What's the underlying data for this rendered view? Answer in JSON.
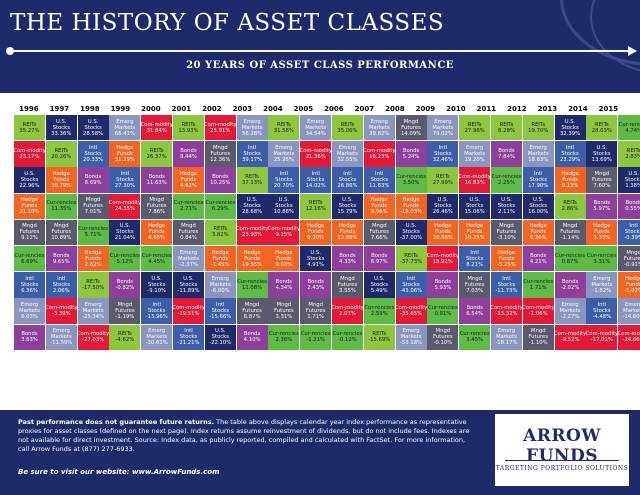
{
  "title": "THE HISTORY OF ASSET CLASSES",
  "subtitle": "20 YEARS OF ASSET CLASS PERFORMANCE",
  "colors": {
    "navy": "#1e2b6b",
    "REITs": "#8dc63f",
    "U.S. Stocks": "#1f2a6b",
    "Intl Stocks": "#3c5ea8",
    "Emerg Markets": "#8a96c0",
    "Com-modity": "#e31937",
    "Hedge Funds": "#f26522",
    "Mngd Futures": "#5a5a6e",
    "Bonds": "#8e3f9c",
    "Cur-rencies": "#5dbb46"
  },
  "years": [
    "1996",
    "1997",
    "1998",
    "1999",
    "2000",
    "2001",
    "2002",
    "2003",
    "2004",
    "2005",
    "2006",
    "2007",
    "2008",
    "2009",
    "2010",
    "2011",
    "2012",
    "2013",
    "2014",
    "2015"
  ],
  "columns": [
    [
      [
        "REITs",
        "35.27%"
      ],
      [
        "Com-modity",
        "23.17%"
      ],
      [
        "U.S. Stocks",
        "22.96%"
      ],
      [
        "Hedge Funds",
        "21.10%"
      ],
      [
        "Mngd Futures",
        "9.12%"
      ],
      [
        "Cur-rencies",
        "6.69%"
      ],
      [
        "Intl Stocks",
        "6.36%"
      ],
      [
        "Emerg Markets",
        "6.03%"
      ],
      [
        "Bonds",
        "3.63%"
      ]
    ],
    [
      [
        "U.S. Stocks",
        "33.36%"
      ],
      [
        "REITs",
        "20.26%"
      ],
      [
        "Hedge Funds",
        "16.79%"
      ],
      [
        "Cur-rencies",
        "11.35%"
      ],
      [
        "Mngd Futures",
        "10.89%"
      ],
      [
        "Bonds",
        "9.65%"
      ],
      [
        "Intl Stocks",
        "2.06%"
      ],
      [
        "Com-modity",
        "-3.39%"
      ],
      [
        "Emerg Markets",
        "-11.59%"
      ]
    ],
    [
      [
        "U.S. Stocks",
        "28.58%"
      ],
      [
        "Intl Stocks",
        "20.33%"
      ],
      [
        "Bonds",
        "8.69%"
      ],
      [
        "Mngd Futures",
        "7.01%"
      ],
      [
        "Cur-rencies",
        "5.71%"
      ],
      [
        "Hedge Funds",
        "2.62%"
      ],
      [
        "REITs",
        "-17.50%"
      ],
      [
        "Emerg Markets",
        "-25.34%"
      ],
      [
        "Com-modity",
        "-27.03%"
      ]
    ],
    [
      [
        "Emerg Markets",
        "66.41%"
      ],
      [
        "Hedge Funds",
        "31.29%"
      ],
      [
        "Intl Stocks",
        "27.30%"
      ],
      [
        "Com-modity",
        "24.35%"
      ],
      [
        "U.S. Stocks",
        "21.04%"
      ],
      [
        "Cur-rencies",
        "5.12%"
      ],
      [
        "Bonds",
        "-0.82%"
      ],
      [
        "Mngd Futures",
        "-1.19%"
      ],
      [
        "REITs",
        "-4.62%"
      ]
    ],
    [
      [
        "Com-modity",
        "31.84%"
      ],
      [
        "REITs",
        "26.37%"
      ],
      [
        "Bonds",
        "11.63%"
      ],
      [
        "Mngd Futures",
        "7.86%"
      ],
      [
        "Hedge Funds",
        "4.85%"
      ],
      [
        "Cur-rencies",
        "4.45%"
      ],
      [
        "U.S. Stocks",
        "-9.10%"
      ],
      [
        "Intl Stocks",
        "-13.96%"
      ],
      [
        "Emerg Markets",
        "-30.61%"
      ]
    ],
    [
      [
        "REITs",
        "13.93%"
      ],
      [
        "Bonds",
        "8.44%"
      ],
      [
        "Hedge Funds",
        "4.62%"
      ],
      [
        "Cur-rencies",
        "2.71%"
      ],
      [
        "Mngd Futures",
        "0.84%"
      ],
      [
        "Emerg Markets",
        "-2.37%"
      ],
      [
        "U.S. Stocks",
        "-11.89%"
      ],
      [
        "Com-modity",
        "-19.51%"
      ],
      [
        "Intl Stocks",
        "-21.21%"
      ]
    ],
    [
      [
        "Com-modity",
        "25.91%"
      ],
      [
        "Mngd Futures",
        "12.36%"
      ],
      [
        "Bonds",
        "10.25%"
      ],
      [
        "Cur-rencies",
        "6.29%"
      ],
      [
        "REITs",
        "3.82%"
      ],
      [
        "Hedge Funds",
        "-1.45%"
      ],
      [
        "Emerg Markets",
        "-6.00%"
      ],
      [
        "Intl Stocks",
        "-15.66%"
      ],
      [
        "U.S. Stocks",
        "-22.10%"
      ]
    ],
    [
      [
        "Emerg Markets",
        "56.28%"
      ],
      [
        "Intl Stocks",
        "39.17%"
      ],
      [
        "REITs",
        "37.13%"
      ],
      [
        "U.S. Stocks",
        "28.68%"
      ],
      [
        "Com-modity",
        "23.93%"
      ],
      [
        "Hedge Funds",
        "19.55%"
      ],
      [
        "Cur-rencies",
        "11.08%"
      ],
      [
        "Mngd Futures",
        "8.87%"
      ],
      [
        "Bonds",
        "4.10%"
      ]
    ],
    [
      [
        "REITs",
        "31.58%"
      ],
      [
        "Emerg Markets",
        "25.95%"
      ],
      [
        "Intl Stocks",
        "20.70%"
      ],
      [
        "U.S. Stocks",
        "10.88%"
      ],
      [
        "Com-modity",
        "9.15%"
      ],
      [
        "Hedge Funds",
        "9.03%"
      ],
      [
        "Bonds",
        "4.34%"
      ],
      [
        "Mngd Futures",
        "3.31%"
      ],
      [
        "Cur-rencies",
        "2.36%"
      ]
    ],
    [
      [
        "Emerg Markets",
        "34.54%"
      ],
      [
        "Com-modity",
        "21.36%"
      ],
      [
        "Intl Stocks",
        "14.02%"
      ],
      [
        "REITs",
        "12.16%"
      ],
      [
        "Hedge Funds",
        "9.30%"
      ],
      [
        "U.S. Stocks",
        "4.91%"
      ],
      [
        "Bonds",
        "2.43%"
      ],
      [
        "Mngd Futures",
        "1.71%"
      ],
      [
        "Cur-rencies",
        "-1.21%"
      ]
    ],
    [
      [
        "REITs",
        "35.06%"
      ],
      [
        "Emerg Markets",
        "32.55%"
      ],
      [
        "Intl Stocks",
        "26.86%"
      ],
      [
        "U.S. Stocks",
        "15.79%"
      ],
      [
        "Hedge Funds",
        "12.89%"
      ],
      [
        "Bonds",
        "4.33%"
      ],
      [
        "Mngd Futures",
        "3.55%"
      ],
      [
        "Com-modity",
        "2.07%"
      ],
      [
        "Cur-rencies",
        "-0.12%"
      ]
    ],
    [
      [
        "Emerg Markets",
        "39.82%"
      ],
      [
        "Com-modity",
        "16.23%"
      ],
      [
        "Intl Stocks",
        "11.63%"
      ],
      [
        "Hedge Funds",
        "9.96%"
      ],
      [
        "Mngd Futures",
        "7.66%"
      ],
      [
        "Bonds",
        "6.97%"
      ],
      [
        "U.S. Stocks",
        "5.49%"
      ],
      [
        "Cur-rencies",
        "2.59%"
      ],
      [
        "REITs",
        "-15.69%"
      ]
    ],
    [
      [
        "Mngd Futures",
        "14.09%"
      ],
      [
        "Bonds",
        "5.24%"
      ],
      [
        "Cur-rencies",
        "3.50%"
      ],
      [
        "Hedge Funds",
        "-19.03%"
      ],
      [
        "U.S. Stocks",
        "-37.00%"
      ],
      [
        "REITs",
        "-37.73%"
      ],
      [
        "Intl Stocks",
        "-43.06%"
      ],
      [
        "Com-modity",
        "-35.65%"
      ],
      [
        "Emerg Markets",
        "-53.18%"
      ]
    ],
    [
      [
        "Emerg Markets",
        "79.02%"
      ],
      [
        "Intl Stocks",
        "32.46%"
      ],
      [
        "REITs",
        "27.99%"
      ],
      [
        "U.S. Stocks",
        "26.46%"
      ],
      [
        "Hedge Funds",
        "19.98%"
      ],
      [
        "Com-modity",
        "18.91%"
      ],
      [
        "Bonds",
        "5.93%"
      ],
      [
        "Cur-rencies",
        "0.91%"
      ],
      [
        "Mngd Futures",
        "-0.10%"
      ]
    ],
    [
      [
        "REITs",
        "27.96%"
      ],
      [
        "Emerg Markets",
        "19.20%"
      ],
      [
        "Com-modity",
        "16.83%"
      ],
      [
        "U.S. Stocks",
        "15.06%"
      ],
      [
        "Hedge Funds",
        "10.25%"
      ],
      [
        "Intl Stocks",
        "8.21%"
      ],
      [
        "Mngd Futures",
        "7.03%"
      ],
      [
        "Bonds",
        "6.54%"
      ],
      [
        "Cur-rencies",
        "3.45%"
      ]
    ],
    [
      [
        "REITs",
        "8.28%"
      ],
      [
        "Bonds",
        "7.84%"
      ],
      [
        "Cur-rencies",
        "2.25%"
      ],
      [
        "U.S. Stocks",
        "2.11%"
      ],
      [
        "Mngd Futures",
        "-3.10%"
      ],
      [
        "Hedge Funds",
        "-5.25%"
      ],
      [
        "Intl Stocks",
        "-11.73%"
      ],
      [
        "Com-modity",
        "-13.32%"
      ],
      [
        "Emerg Markets",
        "-18.17%"
      ]
    ],
    [
      [
        "REITs",
        "19.70%"
      ],
      [
        "Emerg Markets",
        "18.63%"
      ],
      [
        "Intl Stocks",
        "17.90%"
      ],
      [
        "U.S. Stocks",
        "16.00%"
      ],
      [
        "Hedge Funds",
        "6.36%"
      ],
      [
        "Bonds",
        "4.21%"
      ],
      [
        "Cur-rencies",
        "1.71%"
      ],
      [
        "Com-modity",
        "-1.06%"
      ],
      [
        "Mngd Futures",
        "-1.10%"
      ]
    ],
    [
      [
        "U.S. Stocks",
        "32.39%"
      ],
      [
        "Intl Stocks",
        "23.29%"
      ],
      [
        "Hedge Funds",
        "9.13%"
      ],
      [
        "REITs",
        "2.86%"
      ],
      [
        "Mngd Futures",
        "-1.14%"
      ],
      [
        "Cur-rencies",
        "0.87%"
      ],
      [
        "Bonds",
        "-2.02%"
      ],
      [
        "Emerg Markets",
        "-2.27%"
      ],
      [
        "Com-modity",
        "-9.52%"
      ]
    ],
    [
      [
        "REITs",
        "28.03%"
      ],
      [
        "U.S. Stocks",
        "13.69%"
      ],
      [
        "Mngd Futures",
        "7.60%"
      ],
      [
        "Bonds",
        "5.97%"
      ],
      [
        "Hedge Funds",
        "3.33%"
      ],
      [
        "Cur-rencies",
        "3.31%"
      ],
      [
        "Emerg Markets",
        "-1.82%"
      ],
      [
        "Intl Stocks",
        "-4.48%"
      ],
      [
        "Com-modity",
        "-17.01%"
      ]
    ],
    [
      [
        "Cur-rencies",
        "4.74%"
      ],
      [
        "REITs",
        "2.83%"
      ],
      [
        "U.S. Stocks",
        "1.38%"
      ],
      [
        "Bonds",
        "0.55%"
      ],
      [
        "Intl Stocks",
        "-0.39%"
      ],
      [
        "Mngd Futures",
        "-0.91%"
      ],
      [
        "Hedge Funds",
        "-1.02%"
      ],
      [
        "Emerg Markets",
        "-14.60%"
      ],
      [
        "Com-modity",
        "-24.66%"
      ]
    ]
  ],
  "footer": {
    "note_bold": "Past performance does not guarantee future returns.",
    "note_text": " The table above displays calendar year index performance as representative proxies for asset classes (defined on the next page). Index returns assume reinvestment of dividends, but do not include fees. Indexes are not available for direct investment. Source: Index data, as publicly reported, compiled and calculated with FactSet. For more information, call Arrow Funds at (877) 277-6933.",
    "visit": "Be sure to visit our website: www.ArrowFunds.com",
    "logo_name": "ARROW FUNDS",
    "logo_tag": "TARGETING PORTFOLIO SOLUTIONS"
  }
}
